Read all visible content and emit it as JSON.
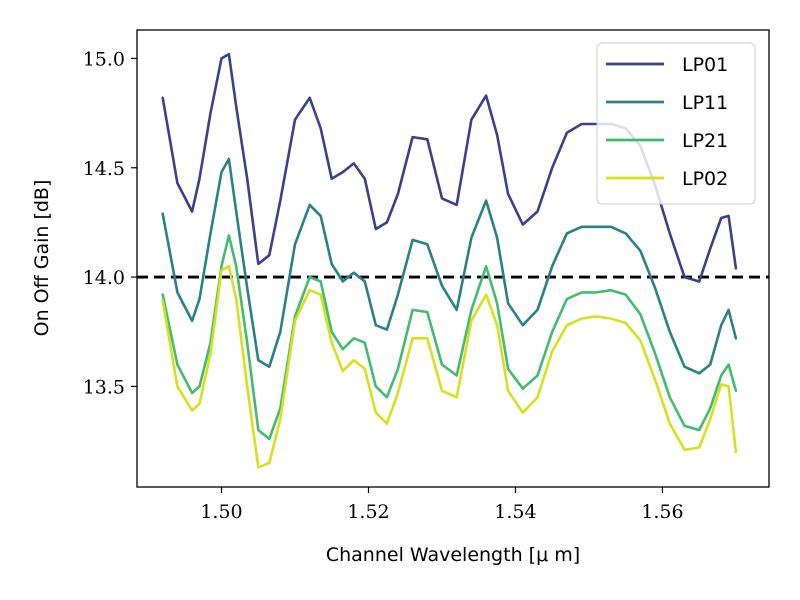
{
  "chart_data": {
    "type": "line",
    "title": "",
    "xlabel": "Channel Wavelength [μ m]",
    "ylabel": "On Off Gain [dB]",
    "xlim": [
      1.4885,
      1.5745
    ],
    "ylim": [
      13.04,
      15.13
    ],
    "xticks": [
      1.5,
      1.52,
      1.54,
      1.56
    ],
    "xtick_labels": [
      "1.50",
      "1.52",
      "1.54",
      "1.56"
    ],
    "yticks": [
      13.5,
      14.0,
      14.5,
      15.0
    ],
    "ytick_labels": [
      "13.5",
      "14.0",
      "14.5",
      "15.0"
    ],
    "grid": false,
    "legend_position": "top-right",
    "reference_line": {
      "y": 14.0,
      "style": "dashed",
      "color": "#000000"
    },
    "x": [
      1.492,
      1.494,
      1.496,
      1.497,
      1.4985,
      1.5,
      1.501,
      1.502,
      1.5035,
      1.505,
      1.5065,
      1.508,
      1.51,
      1.512,
      1.5135,
      1.515,
      1.5165,
      1.518,
      1.5195,
      1.521,
      1.5225,
      1.524,
      1.526,
      1.528,
      1.53,
      1.532,
      1.534,
      1.536,
      1.5375,
      1.539,
      1.541,
      1.543,
      1.545,
      1.547,
      1.549,
      1.551,
      1.553,
      1.555,
      1.557,
      1.559,
      1.561,
      1.563,
      1.565,
      1.5665,
      1.568,
      1.569,
      1.57
    ],
    "series": [
      {
        "name": "LP01",
        "color": "#3b4189",
        "values": [
          14.82,
          14.43,
          14.3,
          14.45,
          14.75,
          15.0,
          15.02,
          14.78,
          14.45,
          14.06,
          14.1,
          14.35,
          14.72,
          14.82,
          14.68,
          14.45,
          14.48,
          14.52,
          14.45,
          14.22,
          14.25,
          14.38,
          14.64,
          14.63,
          14.36,
          14.33,
          14.72,
          14.83,
          14.65,
          14.38,
          14.24,
          14.3,
          14.5,
          14.66,
          14.7,
          14.7,
          14.7,
          14.68,
          14.6,
          14.42,
          14.2,
          14.0,
          13.98,
          14.13,
          14.27,
          14.28,
          14.04
        ]
      },
      {
        "name": "LP11",
        "color": "#2b8088",
        "values": [
          14.29,
          13.93,
          13.8,
          13.9,
          14.2,
          14.48,
          14.54,
          14.3,
          13.95,
          13.62,
          13.59,
          13.75,
          14.15,
          14.33,
          14.28,
          14.06,
          13.98,
          14.02,
          13.98,
          13.78,
          13.76,
          13.92,
          14.17,
          14.15,
          13.96,
          13.85,
          14.18,
          14.35,
          14.18,
          13.88,
          13.78,
          13.85,
          14.05,
          14.2,
          14.23,
          14.23,
          14.23,
          14.2,
          14.12,
          13.95,
          13.75,
          13.59,
          13.56,
          13.6,
          13.78,
          13.85,
          13.72
        ]
      },
      {
        "name": "LP21",
        "color": "#43bb6f",
        "values": [
          13.92,
          13.6,
          13.47,
          13.5,
          13.7,
          14.05,
          14.19,
          14.05,
          13.7,
          13.3,
          13.26,
          13.4,
          13.82,
          14.0,
          13.98,
          13.75,
          13.67,
          13.72,
          13.7,
          13.5,
          13.45,
          13.58,
          13.85,
          13.84,
          13.6,
          13.55,
          13.85,
          14.05,
          13.88,
          13.58,
          13.49,
          13.55,
          13.75,
          13.9,
          13.93,
          13.93,
          13.94,
          13.92,
          13.83,
          13.65,
          13.45,
          13.32,
          13.3,
          13.4,
          13.55,
          13.6,
          13.48
        ]
      },
      {
        "name": "LP02",
        "color": "#d6e11d",
        "values": [
          13.89,
          13.5,
          13.39,
          13.42,
          13.65,
          14.03,
          14.05,
          13.9,
          13.5,
          13.13,
          13.15,
          13.35,
          13.8,
          13.94,
          13.92,
          13.7,
          13.57,
          13.62,
          13.58,
          13.38,
          13.33,
          13.47,
          13.72,
          13.72,
          13.48,
          13.45,
          13.8,
          13.92,
          13.78,
          13.48,
          13.38,
          13.45,
          13.66,
          13.78,
          13.81,
          13.82,
          13.81,
          13.79,
          13.71,
          13.53,
          13.33,
          13.21,
          13.22,
          13.35,
          13.51,
          13.5,
          13.2
        ]
      }
    ]
  }
}
